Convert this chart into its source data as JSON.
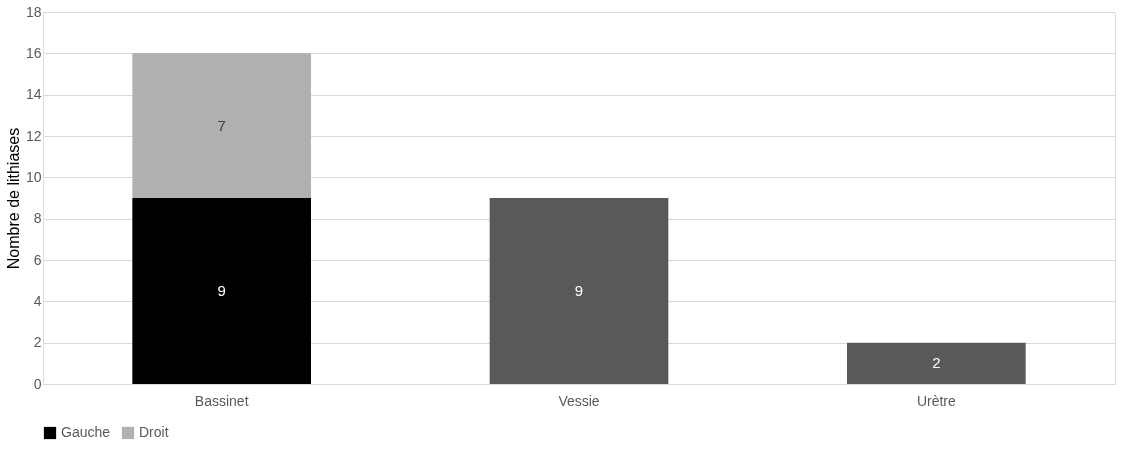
{
  "chart_data": {
    "type": "bar",
    "stacked": true,
    "ylabel": "Nombre de lithiases",
    "categories": [
      "Bassinet",
      "Vessie",
      "Urètre"
    ],
    "series": [
      {
        "name": "Gauche",
        "color": "#000000",
        "values": [
          9,
          null,
          null
        ]
      },
      {
        "name": "Droit",
        "color": "#b0b0b0",
        "values": [
          7,
          null,
          null
        ]
      },
      {
        "color": "#595959",
        "values": [
          null,
          9,
          2
        ]
      }
    ],
    "ylim": [
      0,
      18
    ],
    "yticks": [
      0,
      2,
      4,
      6,
      8,
      10,
      12,
      14,
      16,
      18
    ],
    "grid": "y",
    "legend": "bottom",
    "data_labels": true
  }
}
